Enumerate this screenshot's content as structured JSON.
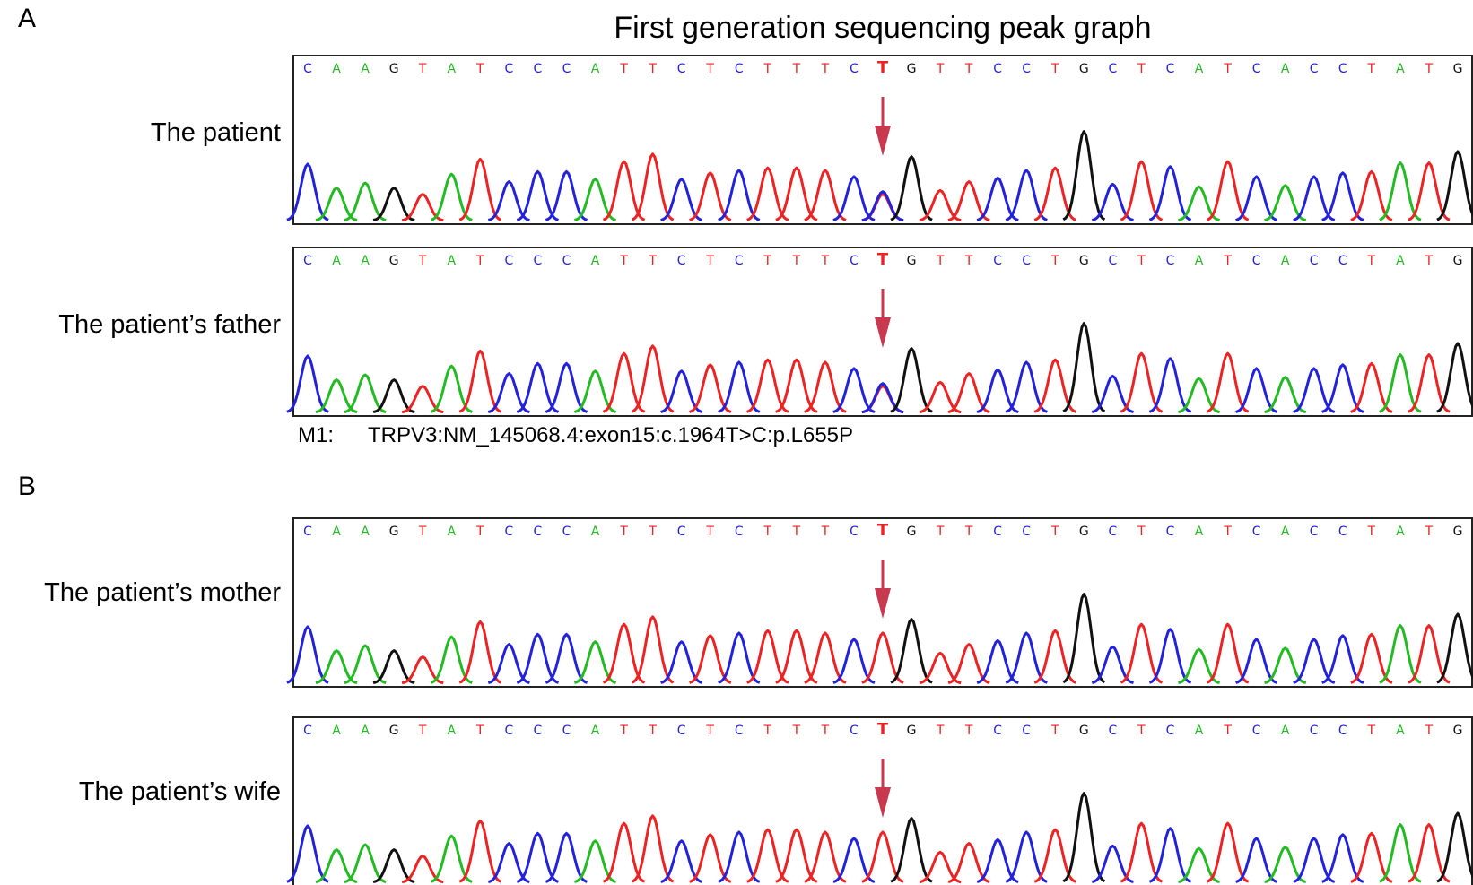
{
  "figure": {
    "title": "First generation sequencing peak graph",
    "panel_a": "A",
    "panel_b": "B",
    "mutation_label": "M1:",
    "mutation_text": "TRPV3:NM_145068.4:exon15:c.1964T>C:p.L655P"
  },
  "colors": {
    "A": "#22bb22",
    "C": "#2222dd",
    "G": "#111111",
    "T": "#ee2222",
    "arrow": "#c8384e",
    "frame": "#222222"
  },
  "chart_data": {
    "type": "chromatogram",
    "sequence": [
      "C",
      "A",
      "A",
      "G",
      "T",
      "A",
      "T",
      "C",
      "C",
      "C",
      "A",
      "T",
      "T",
      "C",
      "T",
      "C",
      "T",
      "T",
      "T",
      "C",
      "T",
      "G",
      "T",
      "T",
      "C",
      "C",
      "T",
      "G",
      "C",
      "T",
      "C",
      "A",
      "T",
      "C",
      "A",
      "C",
      "C",
      "T",
      "A",
      "T",
      "G"
    ],
    "mutation_index": 20,
    "reference_heights": [
      0.45,
      0.26,
      0.3,
      0.26,
      0.21,
      0.37,
      0.49,
      0.31,
      0.39,
      0.39,
      0.33,
      0.47,
      0.53,
      0.33,
      0.38,
      0.4,
      0.42,
      0.42,
      0.4,
      0.35,
      0.4,
      0.51,
      0.24,
      0.31,
      0.34,
      0.4,
      0.42,
      0.71,
      0.29,
      0.47,
      0.43,
      0.27,
      0.47,
      0.35,
      0.28,
      0.35,
      0.38,
      0.39,
      0.46,
      0.46,
      0.55
    ],
    "samples": [
      {
        "label": "The patient",
        "heterozygous": true
      },
      {
        "label": "The patient’s father",
        "heterozygous": true
      },
      {
        "label": "The patient’s mother",
        "heterozygous": false
      },
      {
        "label": "The patient’s wife",
        "heterozygous": false
      }
    ]
  }
}
